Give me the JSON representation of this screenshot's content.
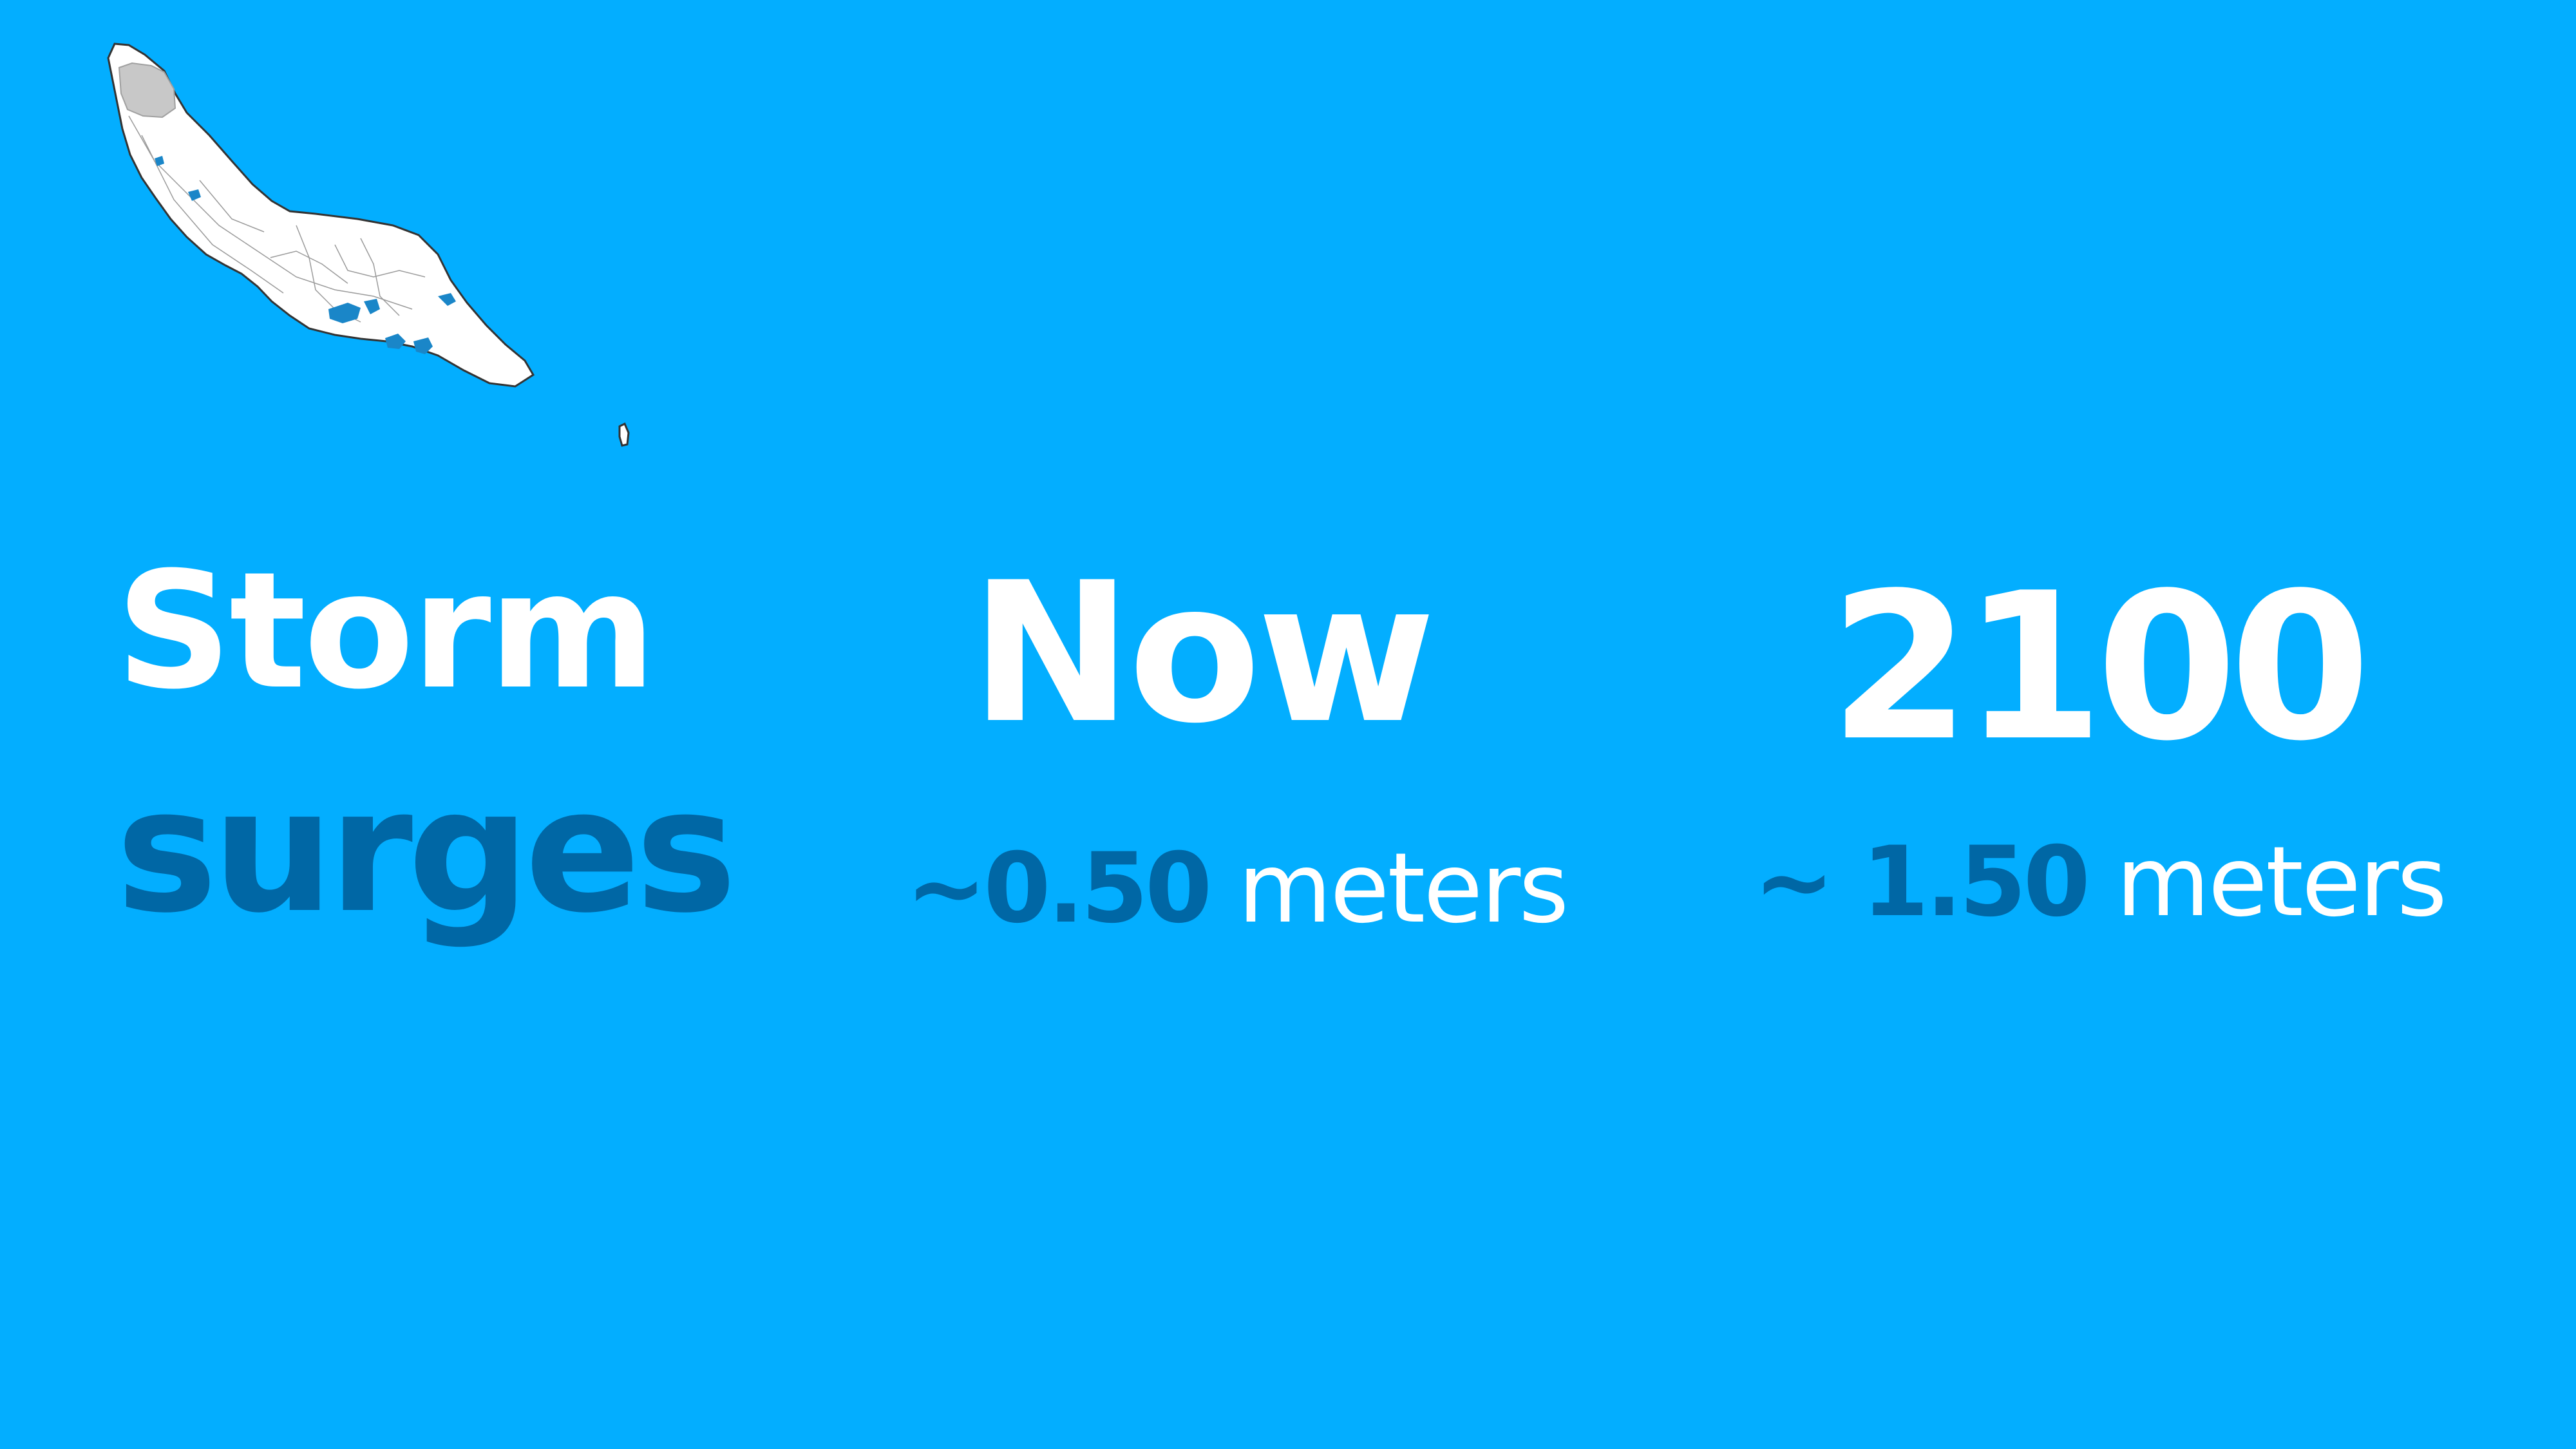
{
  "title": {
    "line1": "Storm",
    "line2": "surges"
  },
  "columns": [
    {
      "heading": "Now",
      "value": "~0.50",
      "unit": " meters"
    },
    {
      "heading": "2100",
      "value": "~ 1.50",
      "unit": " meters"
    }
  ],
  "colors": {
    "background": "#03aeff",
    "primary_text": "#ffffff",
    "accent_text": "#0067a5",
    "island_fill": "#ffffff",
    "flood_zone": "#1a86c8",
    "protected_area": "#c8c8c8"
  },
  "map": {
    "icon": "island-map-icon"
  }
}
